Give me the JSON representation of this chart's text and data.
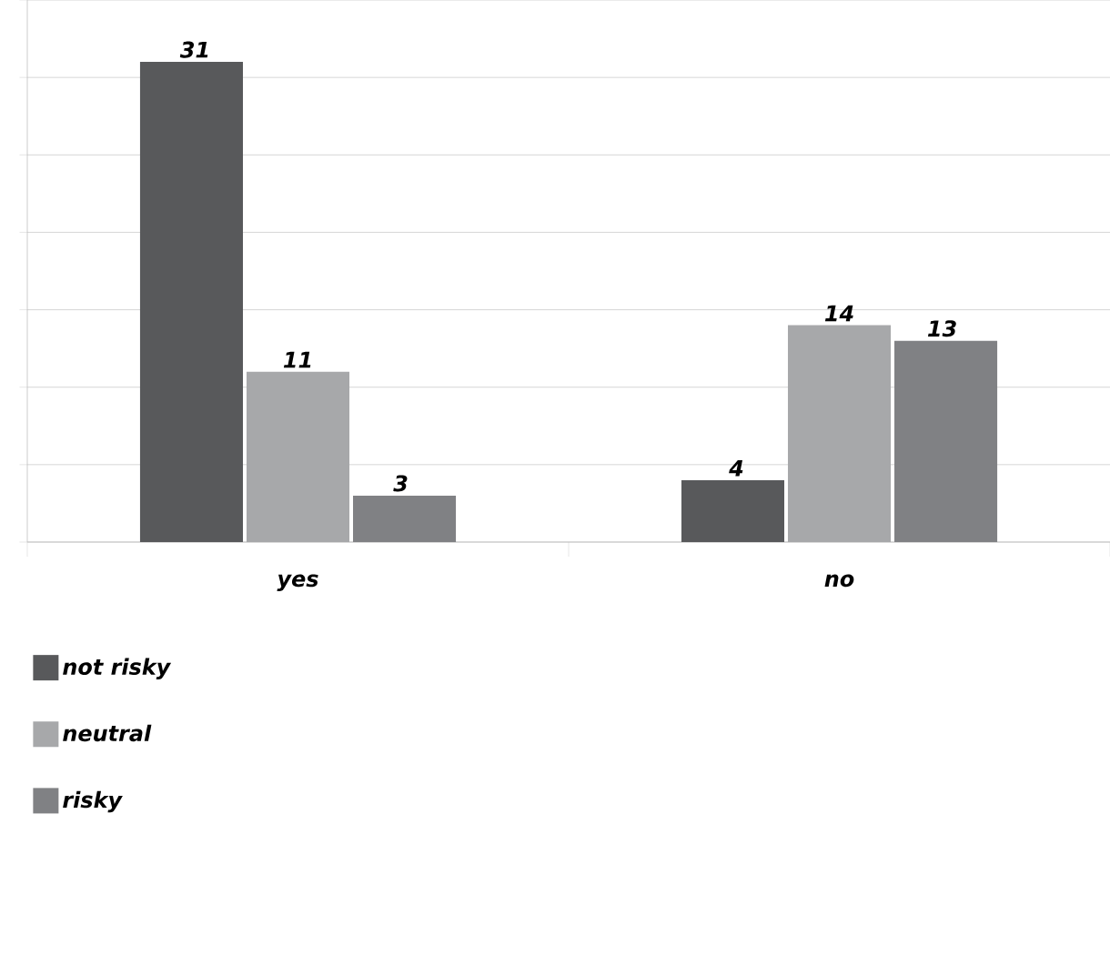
{
  "chart_data": {
    "type": "bar",
    "categories": [
      "yes",
      "no"
    ],
    "series": [
      {
        "name": "not risky",
        "color": "#58595b",
        "values": [
          31,
          4
        ]
      },
      {
        "name": "neutral",
        "color": "#a7a8aa",
        "values": [
          11,
          14
        ]
      },
      {
        "name": "risky",
        "color": "#808184",
        "values": [
          3,
          13
        ]
      }
    ],
    "ylim": [
      0,
      35
    ],
    "yticks": [
      {
        "value": 0,
        "label": null
      },
      {
        "value": 5,
        "label": null
      },
      {
        "value": 10,
        "label": null
      },
      {
        "value": 15,
        "label": null
      },
      {
        "value": 20,
        "label": null
      },
      {
        "value": 25,
        "label": null
      },
      {
        "value": 30,
        "label": null
      },
      {
        "value": 35,
        "label": null
      }
    ],
    "tick_labels": "x",
    "grid": "y",
    "legend": "bottom",
    "data_labels": true
  }
}
